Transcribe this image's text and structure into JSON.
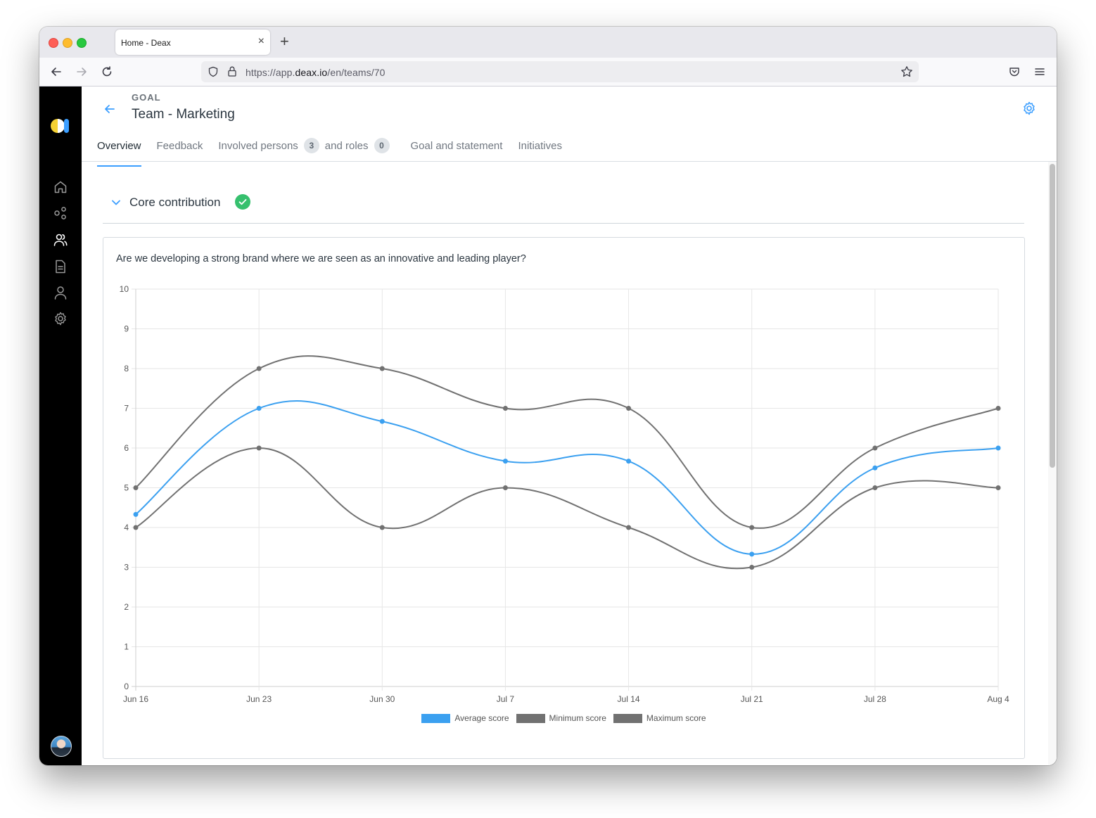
{
  "browser": {
    "tab_title": "Home - Deax",
    "url_scheme": "https://app.",
    "url_host": "deax.io",
    "url_path": "/en/teams/70"
  },
  "header": {
    "overline": "GOAL",
    "title": "Team - Marketing"
  },
  "tabs": [
    {
      "label": "Overview"
    },
    {
      "label": "Feedback"
    },
    {
      "label": "Involved persons",
      "count": "3",
      "sub_label": "and roles",
      "sub_count": "0"
    },
    {
      "label": "Goal and statement"
    },
    {
      "label": "Initiatives"
    }
  ],
  "section": {
    "title": "Core contribution"
  },
  "card": {
    "question": "Are we developing a strong brand where we are seen as an innovative and leading player?"
  },
  "colors": {
    "accent": "#3b9eff",
    "average": "#3ba0f0",
    "minmax": "#717171",
    "success": "#36c06e",
    "sidebar": "#000000"
  },
  "icons": {
    "sidebar": [
      "home-icon",
      "network-icon",
      "team-icon",
      "document-icon",
      "user-icon",
      "settings-icon"
    ]
  },
  "chart_data": {
    "type": "line",
    "categories": [
      "Jun 16",
      "Jun 23",
      "Jun 30",
      "Jul 7",
      "Jul 14",
      "Jul 21",
      "Jul 28",
      "Aug 4"
    ],
    "yticks": [
      "0",
      "1",
      "2",
      "3",
      "4",
      "5",
      "6",
      "7",
      "8",
      "9",
      "10"
    ],
    "ylim": [
      0,
      10
    ],
    "grid": true,
    "legend_position": "bottom",
    "smooth": true,
    "series": [
      {
        "name": "Average score",
        "color": "#3ba0f0",
        "values": [
          4.33,
          7,
          6.67,
          5.67,
          5.67,
          3.33,
          5.5,
          6
        ]
      },
      {
        "name": "Minimum score",
        "color": "#717171",
        "values": [
          4,
          6,
          4,
          5,
          4,
          3,
          5,
          5
        ]
      },
      {
        "name": "Maximum score",
        "color": "#717171",
        "values": [
          5,
          8,
          8,
          7,
          7,
          4,
          6,
          7
        ]
      }
    ]
  }
}
